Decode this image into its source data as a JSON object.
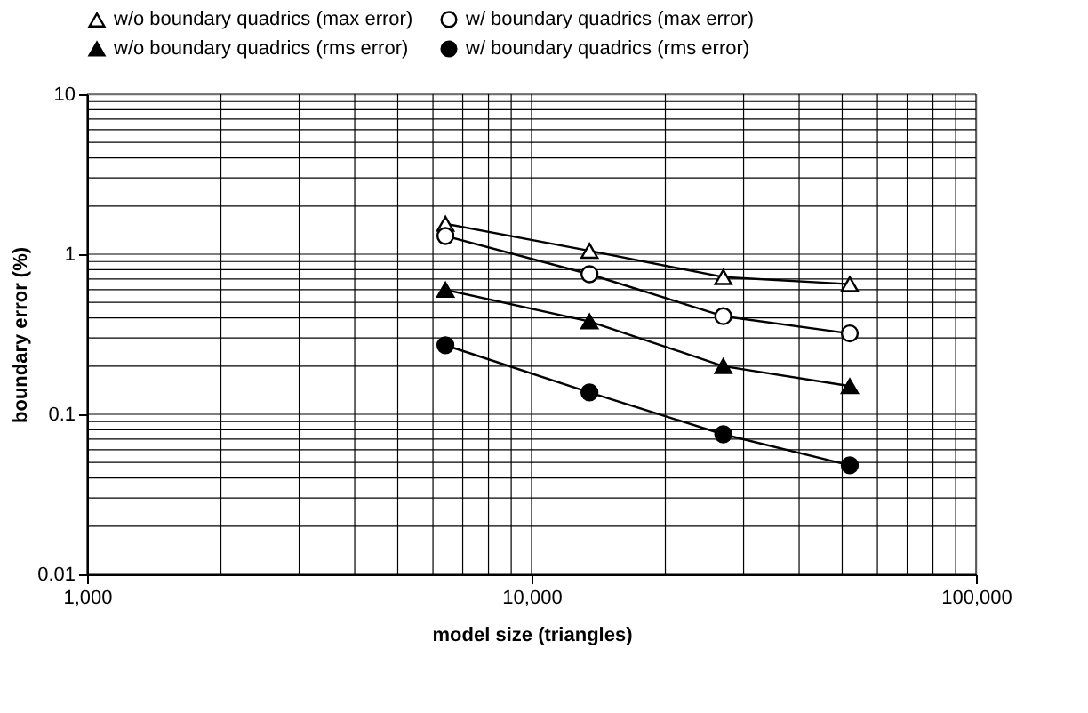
{
  "chart_data": {
    "type": "line",
    "xlabel": "model size (triangles)",
    "ylabel": "boundary error (%)",
    "x": [
      6400,
      13500,
      27000,
      52000
    ],
    "series": [
      {
        "name": "w/o boundary quadrics (max error)",
        "color": "#000000",
        "colors": [
          "#ffffff",
          "#ffffff",
          "#ffffff",
          "#ffffff"
        ],
        "marker": "triangle",
        "values": [
          1.55,
          1.05,
          0.72,
          0.65
        ]
      },
      {
        "name": "w/ boundary quadrics (max error)",
        "color": "#000000",
        "colors": [
          "#ffffff",
          "#ffffff",
          "#ffffff",
          "#ffffff"
        ],
        "marker": "circle",
        "values": [
          1.3,
          0.75,
          0.41,
          0.32
        ]
      },
      {
        "name": "w/o boundary quadrics (rms error)",
        "color": "#000000",
        "colors": [
          "#000000",
          "#000000",
          "#000000",
          "#000000"
        ],
        "marker": "triangle",
        "values": [
          0.6,
          0.38,
          0.2,
          0.15
        ]
      },
      {
        "name": "w/ boundary quadrics (rms error)",
        "color": "#000000",
        "colors": [
          "#000000",
          "#000000",
          "#000000",
          "#000000"
        ],
        "marker": "circle",
        "values": [
          0.27,
          0.137,
          0.075,
          0.048
        ]
      }
    ],
    "log": "xy",
    "xlim": [
      1000,
      100000
    ],
    "ylim": [
      0.01,
      10
    ],
    "xticks": [
      {
        "value": 1000,
        "label": "1,000"
      },
      {
        "value": 10000,
        "label": "10,000"
      },
      {
        "value": 100000,
        "label": "100,000"
      }
    ],
    "yticks": [
      0.01,
      0.1,
      1,
      10
    ],
    "grid": true,
    "legend": "top",
    "line_style": "solid"
  }
}
